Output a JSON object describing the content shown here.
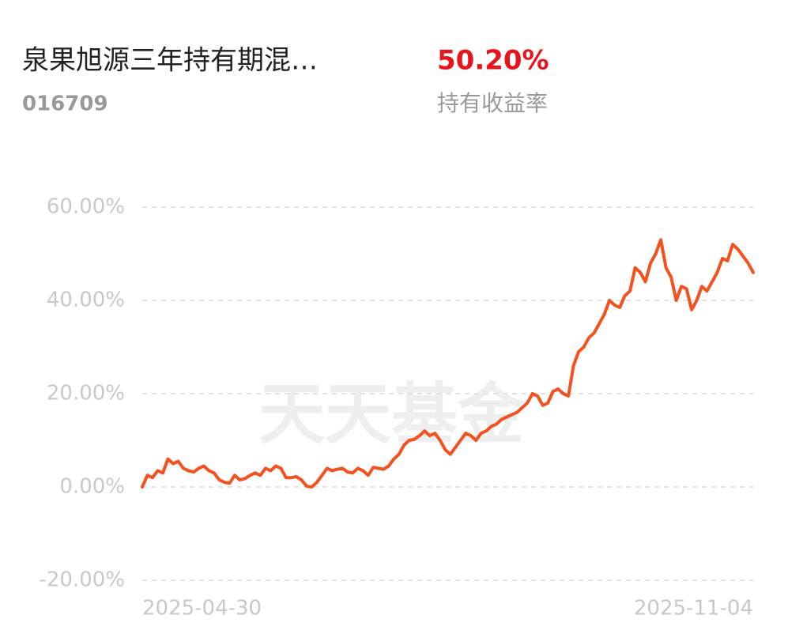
{
  "header": {
    "fund_name": "泉果旭源三年持有期混…",
    "fund_code": "016709",
    "return_value": "50.20%",
    "return_label": "持有收益率"
  },
  "chart_data": {
    "type": "line",
    "watermark": "天天基金",
    "color": "#f4511e",
    "grid": true,
    "categories": [
      "2025-04-30",
      null,
      null,
      null,
      null,
      null,
      null,
      null,
      null,
      null,
      null,
      null,
      null,
      null,
      null,
      null,
      null,
      null,
      null,
      null,
      null,
      null,
      null,
      null,
      null,
      null,
      null,
      null,
      null,
      null,
      null,
      null,
      null,
      null,
      null,
      null,
      null,
      null,
      null,
      null,
      null,
      null,
      null,
      null,
      null,
      null,
      null,
      null,
      null,
      null,
      null,
      null,
      null,
      null,
      null,
      null,
      null,
      null,
      null,
      null,
      null,
      null,
      null,
      null,
      null,
      null,
      null,
      null,
      null,
      null,
      null,
      null,
      null,
      null,
      null,
      null,
      null,
      null,
      null,
      null,
      null,
      null,
      null,
      null,
      null,
      null,
      null,
      null,
      null,
      null,
      null,
      null,
      null,
      null,
      null,
      null,
      null,
      null,
      null,
      null,
      null,
      null,
      null,
      null,
      null,
      null,
      null,
      null,
      null,
      null,
      null,
      null,
      null,
      null,
      null,
      null,
      null,
      null,
      null,
      "2025-11-04"
    ],
    "values": [
      0,
      2.5,
      2,
      3.5,
      3,
      6,
      5,
      5.5,
      4,
      3.5,
      3.2,
      4,
      4.5,
      3.5,
      3,
      1.5,
      1,
      0.8,
      2.5,
      1.5,
      1.8,
      2.5,
      3,
      2.5,
      4,
      3.5,
      4.5,
      4,
      2,
      2,
      2.2,
      1.5,
      0.2,
      0,
      1,
      2.5,
      4,
      3.5,
      3.8,
      4,
      3.2,
      3,
      4,
      3.5,
      2.5,
      4.2,
      4,
      3.8,
      4.5,
      6,
      7,
      9,
      10,
      10.2,
      11,
      12,
      11,
      11.5,
      10,
      8,
      7,
      8.5,
      10,
      11.5,
      11,
      10,
      11.5,
      12,
      13,
      13.5,
      14.5,
      15,
      15.5,
      16,
      17,
      18,
      20,
      19.5,
      17.5,
      18,
      20.5,
      21,
      20,
      19.5,
      26,
      29,
      30,
      32,
      33,
      35,
      37,
      40,
      39,
      38.5,
      41,
      42,
      47,
      46,
      44,
      48,
      50,
      53,
      47,
      45,
      40,
      43,
      42.5,
      38,
      40,
      43,
      42,
      44,
      46,
      49,
      48.5,
      52,
      51,
      49.5,
      48,
      46
    ],
    "ylim": [
      -20,
      60
    ],
    "yticks": [
      {
        "value": -20,
        "label": "-20.00%"
      },
      {
        "value": 0,
        "label": "0.00%"
      },
      {
        "value": 20,
        "label": "20.00%"
      },
      {
        "value": 40,
        "label": "40.00%"
      },
      {
        "value": 60,
        "label": "60.00%"
      }
    ]
  }
}
